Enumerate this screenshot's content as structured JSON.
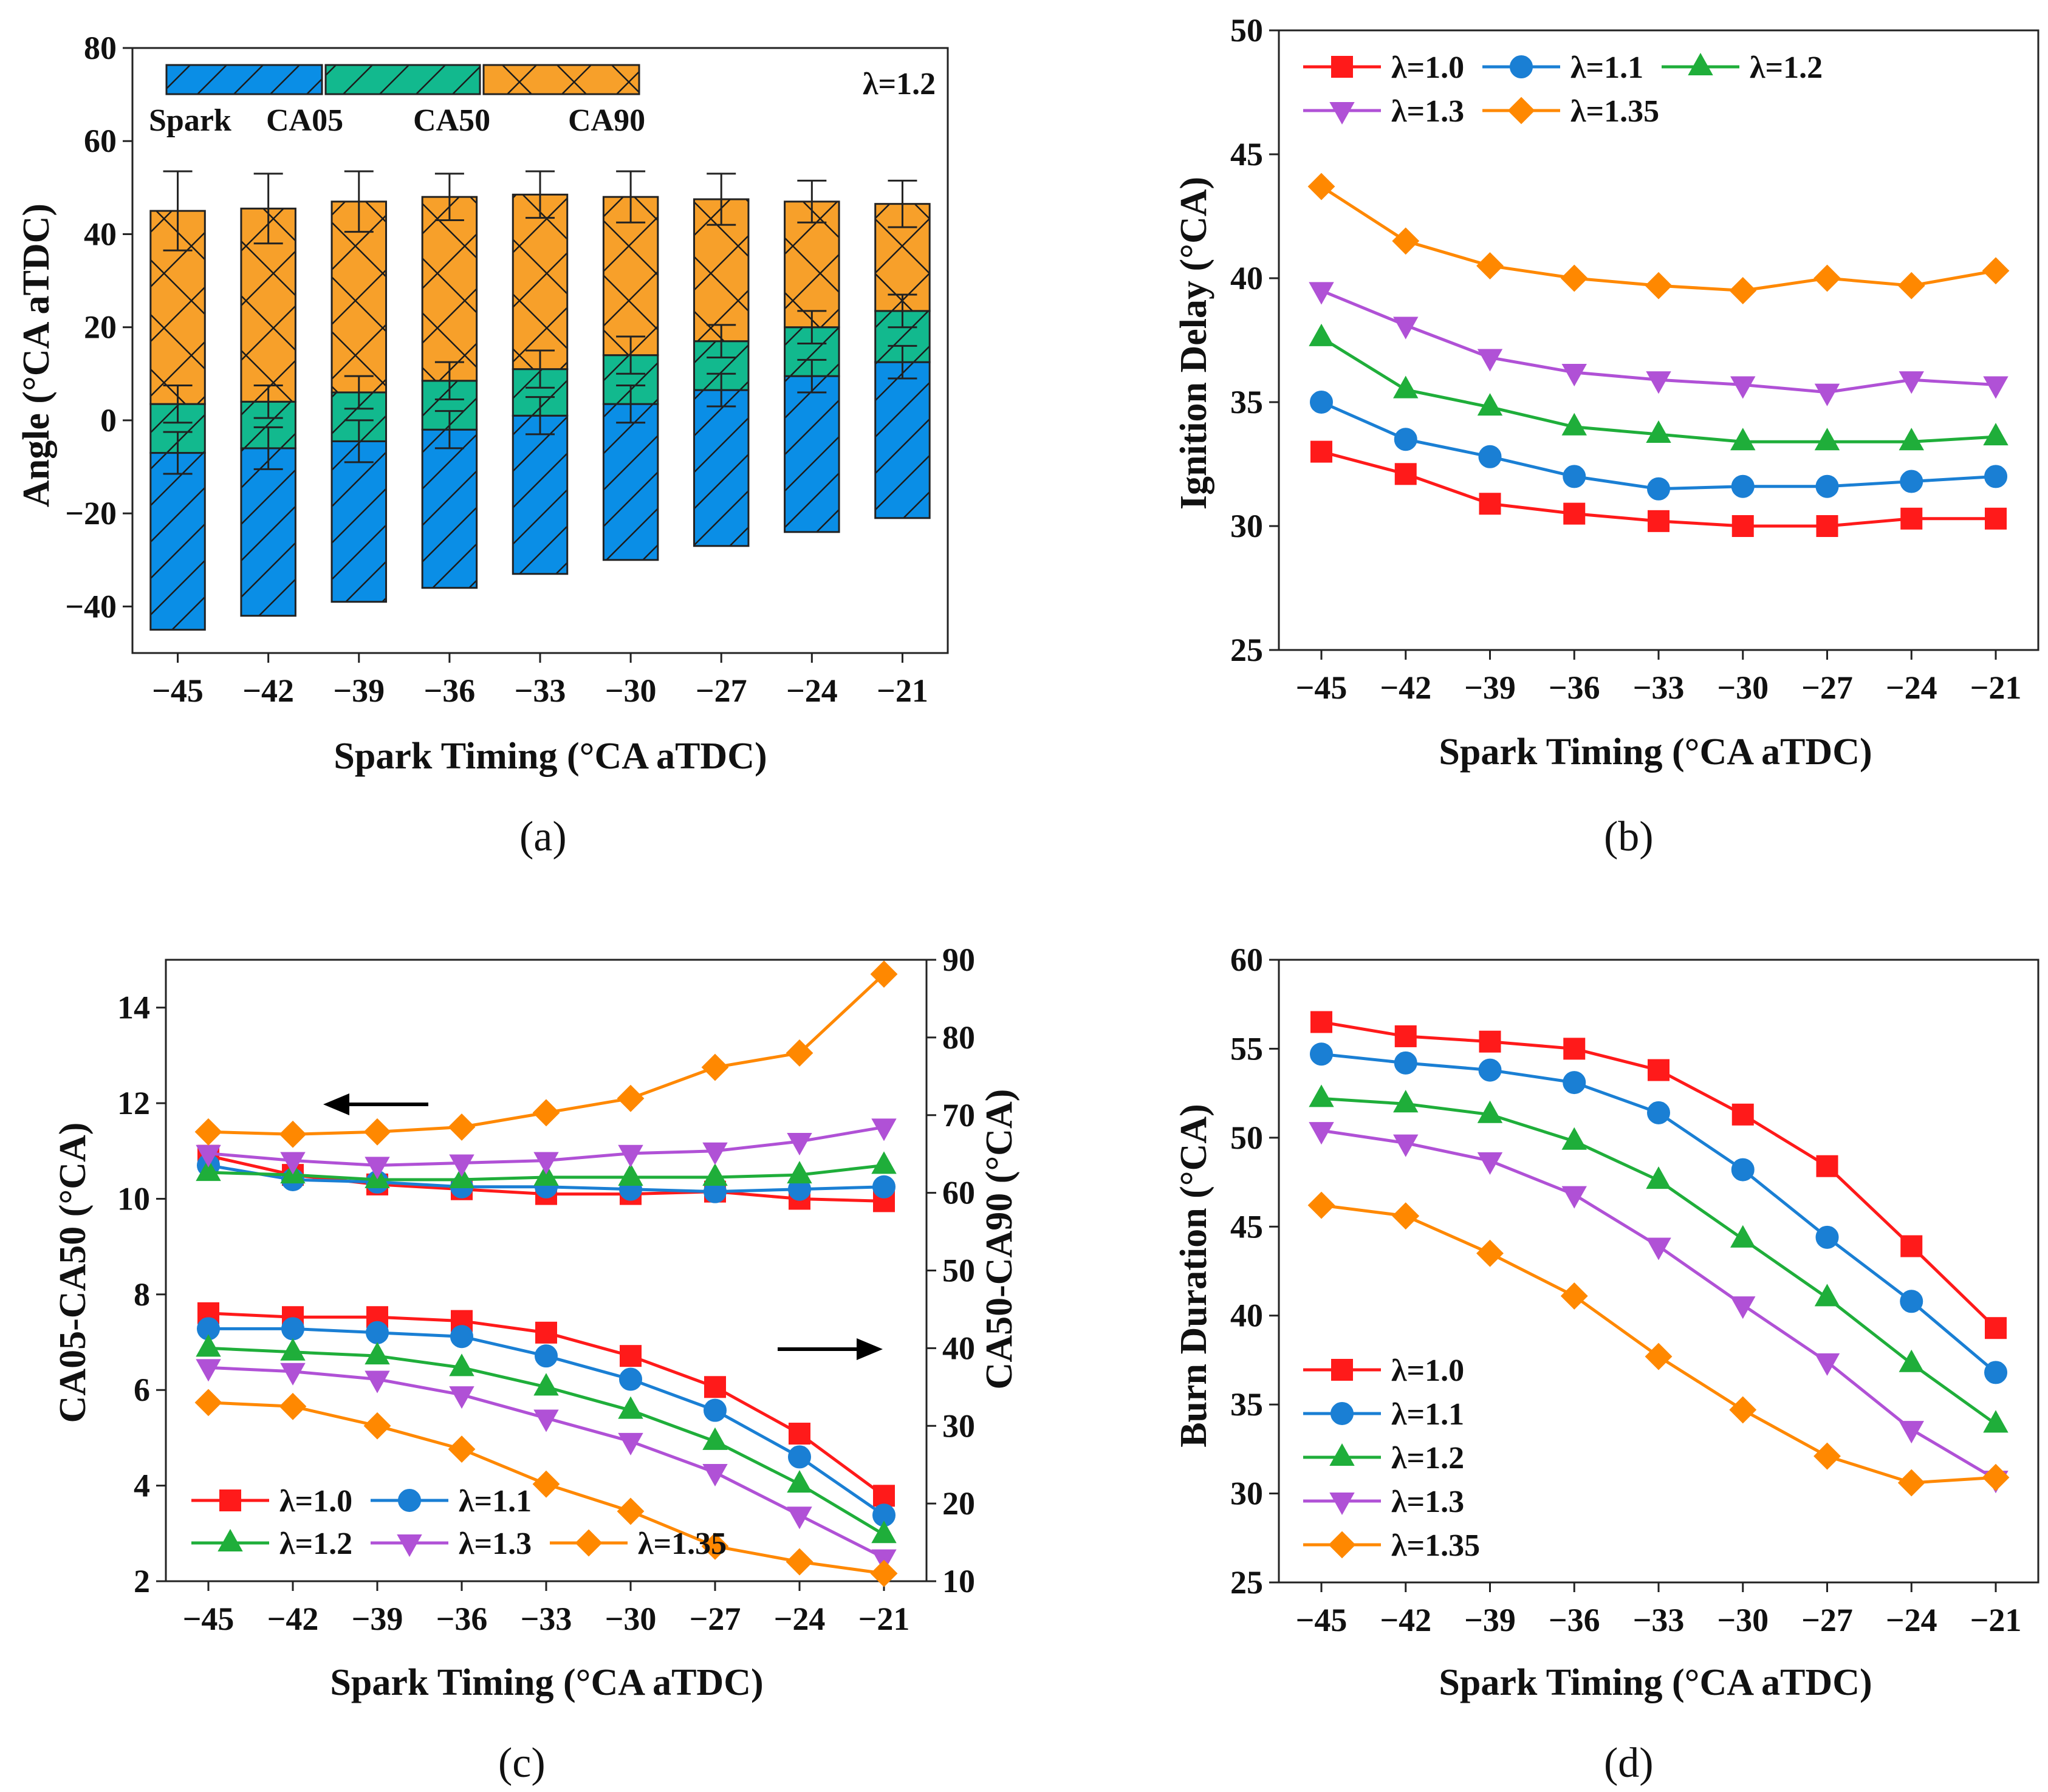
{
  "chart_data": [
    {
      "panel": "(a)",
      "type": "bar",
      "subtype": "floating-stacked-bar",
      "title": "",
      "annotation": "λ=1.2",
      "xlabel": "Spark Timing (°CA aTDC)",
      "ylabel": "Angle (°CA aTDC)",
      "categories": [
        "−45",
        "−42",
        "−39",
        "−36",
        "−33",
        "−30",
        "−27",
        "−24",
        "−21"
      ],
      "x": [
        -45,
        -42,
        -39,
        -36,
        -33,
        -30,
        -27,
        -24,
        -21
      ],
      "ylim": [
        -50,
        80
      ],
      "yticks": [
        -40,
        -20,
        0,
        20,
        40,
        60,
        80
      ],
      "ytick_labels": [
        "−40",
        "−20",
        "0",
        "20",
        "40",
        "60",
        "80"
      ],
      "legend_labels": [
        "Spark",
        "CA05",
        "CA50",
        "CA90"
      ],
      "colors": {
        "spark_to_ca05": "#0a8ee6",
        "ca05_to_ca50": "#12b98e",
        "ca50_to_ca90": "#f7a02a"
      },
      "spark": [
        -45,
        -42,
        -39,
        -36,
        -33,
        -30,
        -27,
        -24,
        -21
      ],
      "ca05": [
        -7,
        -6,
        -4.5,
        -2,
        1,
        3.5,
        6.5,
        9.5,
        12.5
      ],
      "ca50": [
        3.5,
        4,
        6,
        8.5,
        11,
        14,
        17,
        20,
        23.5
      ],
      "ca90": [
        45,
        45.5,
        47,
        48,
        48.5,
        48,
        47.5,
        47,
        46.5
      ],
      "ca05_err": [
        4.5,
        4.5,
        4.5,
        4,
        4,
        4,
        3.5,
        3.5,
        3.5
      ],
      "ca50_err": [
        4,
        3.5,
        3.5,
        4,
        4,
        4,
        3.5,
        3.5,
        3.5
      ],
      "ca90_err": [
        8.5,
        7.5,
        6.5,
        5,
        5,
        5.5,
        5.5,
        4.5,
        5
      ]
    },
    {
      "panel": "(b)",
      "type": "line",
      "title": "",
      "xlabel": "Spark Timing (°CA aTDC)",
      "ylabel": "Ignition Delay (°CA)",
      "x": [
        -45,
        -42,
        -39,
        -36,
        -33,
        -30,
        -27,
        -24,
        -21
      ],
      "xtick_labels": [
        "−45",
        "−42",
        "−39",
        "−36",
        "−33",
        "−30",
        "−27",
        "−24",
        "−21"
      ],
      "ylim": [
        25,
        50
      ],
      "yticks": [
        25,
        30,
        35,
        40,
        45,
        50
      ],
      "legend": "top-left",
      "series": [
        {
          "name": "λ=1.0",
          "color": "#ff1a1a",
          "marker": "square",
          "values": [
            33.0,
            32.1,
            30.9,
            30.5,
            30.2,
            30.0,
            30.0,
            30.3,
            30.3
          ]
        },
        {
          "name": "λ=1.1",
          "color": "#1a7fd4",
          "marker": "circle",
          "values": [
            35.0,
            33.5,
            32.8,
            32.0,
            31.5,
            31.6,
            31.6,
            31.8,
            32.0
          ]
        },
        {
          "name": "λ=1.2",
          "color": "#1fae3a",
          "marker": "triangle-up",
          "values": [
            37.6,
            35.5,
            34.8,
            34.0,
            33.7,
            33.4,
            33.4,
            33.4,
            33.6
          ]
        },
        {
          "name": "λ=1.3",
          "color": "#b051d6",
          "marker": "triangle-down",
          "values": [
            39.5,
            38.1,
            36.8,
            36.2,
            35.9,
            35.7,
            35.4,
            35.9,
            35.7
          ]
        },
        {
          "name": "λ=1.35",
          "color": "#ff8800",
          "marker": "diamond",
          "values": [
            43.7,
            41.5,
            40.5,
            40.0,
            39.7,
            39.5,
            40.0,
            39.7,
            40.3
          ]
        }
      ]
    },
    {
      "panel": "(c)",
      "type": "line",
      "subtype": "dual-axis",
      "title": "",
      "xlabel": "Spark Timing (°CA aTDC)",
      "ylabel": "CA05-CA50 (°CA)",
      "ylabel_right": "CA50-CA90 (°CA)",
      "x": [
        -45,
        -42,
        -39,
        -36,
        -33,
        -30,
        -27,
        -24,
        -21
      ],
      "xtick_labels": [
        "−45",
        "−42",
        "−39",
        "−36",
        "−33",
        "−30",
        "−27",
        "−24",
        "−21"
      ],
      "ylim": [
        2,
        15
      ],
      "yticks": [
        2,
        4,
        6,
        8,
        10,
        12,
        14
      ],
      "ylim_right": [
        10,
        90
      ],
      "yticks_right": [
        10,
        20,
        30,
        40,
        50,
        60,
        70,
        80,
        90
      ],
      "legend": "bottom-left",
      "series_left": [
        {
          "name": "λ=1.0",
          "color": "#ff1a1a",
          "marker": "square",
          "values": [
            10.9,
            10.5,
            10.3,
            10.2,
            10.1,
            10.1,
            10.15,
            10.0,
            9.95
          ]
        },
        {
          "name": "λ=1.1",
          "color": "#1a7fd4",
          "marker": "circle",
          "values": [
            10.7,
            10.4,
            10.35,
            10.25,
            10.25,
            10.2,
            10.15,
            10.2,
            10.25
          ]
        },
        {
          "name": "λ=1.2",
          "color": "#1fae3a",
          "marker": "triangle-up",
          "values": [
            10.55,
            10.5,
            10.4,
            10.4,
            10.45,
            10.45,
            10.45,
            10.5,
            10.7
          ]
        },
        {
          "name": "λ=1.3",
          "color": "#b051d6",
          "marker": "triangle-down",
          "values": [
            10.95,
            10.8,
            10.7,
            10.75,
            10.8,
            10.95,
            11.0,
            11.2,
            11.5
          ]
        },
        {
          "name": "λ=1.35",
          "color": "#ff8800",
          "marker": "diamond",
          "values": [
            11.4,
            11.35,
            11.4,
            11.5,
            11.8,
            12.1,
            12.75,
            13.05,
            14.7
          ]
        }
      ],
      "series_right": [
        {
          "name": "λ=1.0",
          "color": "#ff1a1a",
          "marker": "square",
          "values": [
            44.5,
            44,
            44,
            43.5,
            42,
            39,
            35,
            29,
            21
          ]
        },
        {
          "name": "λ=1.1",
          "color": "#1a7fd4",
          "marker": "circle",
          "values": [
            42.5,
            42.5,
            42,
            41.5,
            39,
            36,
            32,
            26,
            18.5
          ]
        },
        {
          "name": "λ=1.2",
          "color": "#1fae3a",
          "marker": "triangle-up",
          "values": [
            40,
            39.5,
            39,
            37.5,
            35,
            32,
            28,
            22.5,
            16
          ]
        },
        {
          "name": "λ=1.3",
          "color": "#b051d6",
          "marker": "triangle-down",
          "values": [
            37.5,
            37,
            36,
            34,
            31,
            28,
            24,
            18.5,
            13
          ]
        },
        {
          "name": "λ=1.35",
          "color": "#ff8800",
          "marker": "diamond",
          "values": [
            33,
            32.5,
            30,
            27,
            22.5,
            19,
            14.5,
            12.5,
            11
          ]
        }
      ]
    },
    {
      "panel": "(d)",
      "type": "line",
      "title": "",
      "xlabel": "Spark Timing (°CA aTDC)",
      "ylabel": "Burn Duration (°CA)",
      "x": [
        -45,
        -42,
        -39,
        -36,
        -33,
        -30,
        -27,
        -24,
        -21
      ],
      "xtick_labels": [
        "−45",
        "−42",
        "−39",
        "−36",
        "−33",
        "−30",
        "−27",
        "−24",
        "−21"
      ],
      "ylim": [
        25,
        60
      ],
      "yticks": [
        25,
        30,
        35,
        40,
        45,
        50,
        55,
        60
      ],
      "legend": "bottom-left",
      "series": [
        {
          "name": "λ=1.0",
          "color": "#ff1a1a",
          "marker": "square",
          "values": [
            56.5,
            55.7,
            55.4,
            55.0,
            53.8,
            51.3,
            48.4,
            43.9,
            39.3
          ]
        },
        {
          "name": "λ=1.1",
          "color": "#1a7fd4",
          "marker": "circle",
          "values": [
            54.7,
            54.2,
            53.8,
            53.1,
            51.4,
            48.2,
            44.4,
            40.8,
            36.8
          ]
        },
        {
          "name": "λ=1.2",
          "color": "#1fae3a",
          "marker": "triangle-up",
          "values": [
            52.2,
            51.9,
            51.3,
            49.8,
            47.6,
            44.3,
            41.0,
            37.3,
            33.9
          ]
        },
        {
          "name": "λ=1.3",
          "color": "#b051d6",
          "marker": "triangle-down",
          "values": [
            50.4,
            49.7,
            48.7,
            46.8,
            43.9,
            40.6,
            37.4,
            33.6,
            30.8
          ]
        },
        {
          "name": "λ=1.35",
          "color": "#ff8800",
          "marker": "diamond",
          "values": [
            46.2,
            45.6,
            43.5,
            41.1,
            37.7,
            34.7,
            32.1,
            30.6,
            30.9
          ]
        }
      ]
    }
  ]
}
